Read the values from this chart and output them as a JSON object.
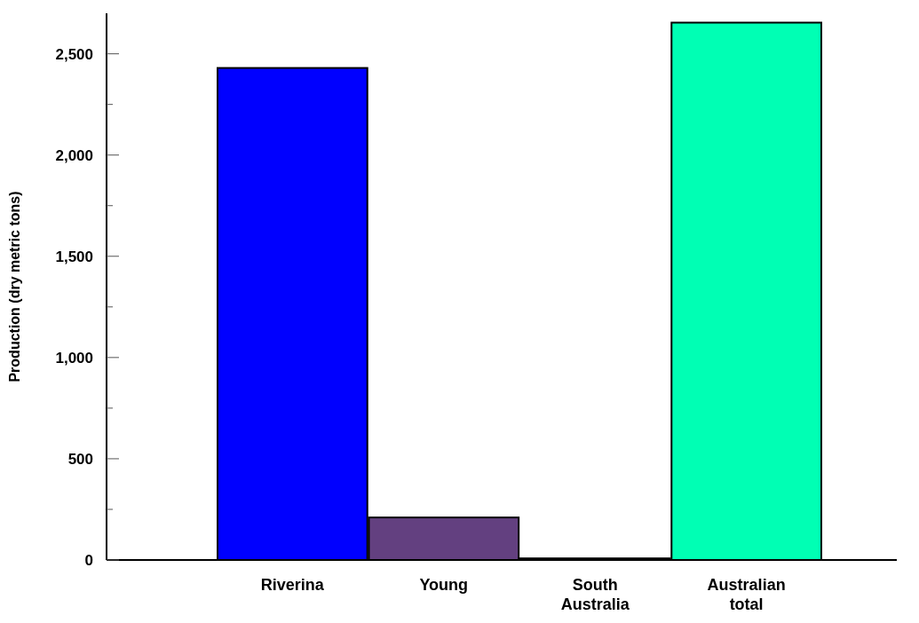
{
  "chart_data": {
    "type": "bar",
    "ylabel": "Production (dry metric tons)",
    "categories": [
      "Riverina",
      "Young",
      "South Australia",
      "Australian total"
    ],
    "values": [
      2430,
      210,
      8,
      2654
    ],
    "colors": [
      "#0000ff",
      "#634080",
      "#634080",
      "#00ffb4"
    ],
    "ylim": [
      0,
      2700
    ],
    "yticks": [
      0,
      {
        "value": 250,
        "label": null
      },
      500,
      {
        "value": 750,
        "label": null
      },
      {
        "value": 1000,
        "label": "1,000"
      },
      {
        "value": 1250,
        "label": null
      },
      {
        "value": 1500,
        "label": "1,500"
      },
      {
        "value": 1750,
        "label": null
      },
      {
        "value": 2000,
        "label": "2,000"
      },
      {
        "value": 2250,
        "label": null
      },
      {
        "value": 2500,
        "label": "2,500"
      }
    ],
    "grid": false
  }
}
